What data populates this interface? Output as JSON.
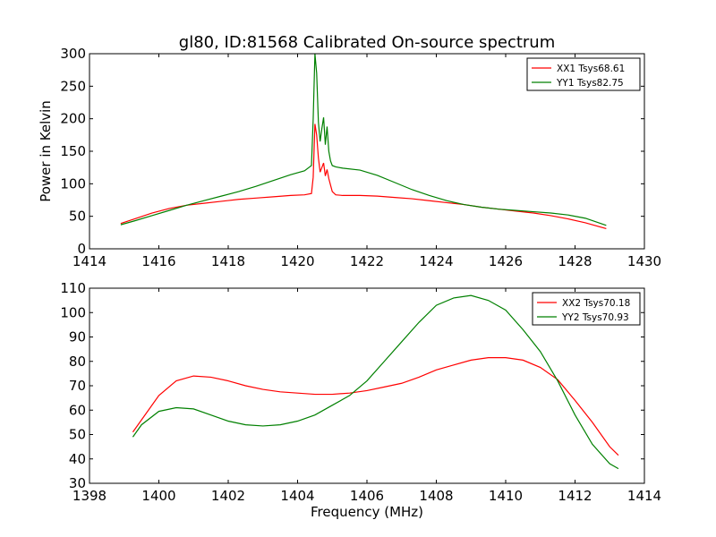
{
  "figure": {
    "title": "gl80, ID:81568 Calibrated On-source spectrum"
  },
  "chart_data": [
    {
      "type": "line",
      "ylabel": "Power in Kelvin",
      "xlabel": "",
      "xlim": [
        1414,
        1430
      ],
      "ylim": [
        0,
        300
      ],
      "xticks": [
        1414,
        1416,
        1418,
        1420,
        1422,
        1424,
        1426,
        1428,
        1430
      ],
      "yticks": [
        0,
        50,
        100,
        150,
        200,
        250,
        300
      ],
      "grid": false,
      "legend": "top-right",
      "series": [
        {
          "name": "XX1 Tsys68.61",
          "color": "#ff0000",
          "x": [
            1414.9,
            1415.3,
            1415.8,
            1416.3,
            1416.8,
            1417.3,
            1417.8,
            1418.3,
            1418.8,
            1419.3,
            1419.8,
            1420.2,
            1420.4,
            1420.45,
            1420.5,
            1420.55,
            1420.6,
            1420.65,
            1420.7,
            1420.75,
            1420.8,
            1420.85,
            1420.9,
            1420.95,
            1421.0,
            1421.1,
            1421.3,
            1421.8,
            1422.3,
            1422.8,
            1423.3,
            1423.8,
            1424.3,
            1424.8,
            1425.3,
            1425.8,
            1426.3,
            1426.8,
            1427.3,
            1427.8,
            1428.3,
            1428.9
          ],
          "y": [
            39,
            46,
            55,
            62,
            67,
            70,
            73,
            76,
            78,
            80,
            82,
            83,
            85,
            110,
            192,
            175,
            140,
            118,
            125,
            132,
            112,
            122,
            108,
            98,
            88,
            83,
            82,
            82,
            81,
            79,
            77,
            74,
            71,
            68,
            64,
            61,
            58,
            55,
            51,
            46,
            40,
            31
          ]
        },
        {
          "name": "YY1 Tsys82.75",
          "color": "#008000",
          "x": [
            1414.9,
            1415.3,
            1415.8,
            1416.3,
            1416.8,
            1417.3,
            1417.8,
            1418.3,
            1418.8,
            1419.3,
            1419.8,
            1420.2,
            1420.4,
            1420.45,
            1420.5,
            1420.55,
            1420.6,
            1420.65,
            1420.7,
            1420.75,
            1420.8,
            1420.85,
            1420.9,
            1420.95,
            1421.0,
            1421.1,
            1421.3,
            1421.8,
            1422.3,
            1422.8,
            1423.3,
            1423.8,
            1424.3,
            1424.8,
            1425.3,
            1425.8,
            1426.3,
            1426.8,
            1427.3,
            1427.8,
            1428.3,
            1428.9
          ],
          "y": [
            37,
            43,
            51,
            59,
            67,
            74,
            81,
            88,
            96,
            105,
            114,
            120,
            128,
            200,
            300,
            270,
            195,
            165,
            185,
            202,
            160,
            188,
            150,
            135,
            128,
            126,
            124,
            121,
            113,
            102,
            91,
            82,
            74,
            68,
            64,
            61,
            59,
            57,
            55,
            52,
            47,
            36
          ]
        }
      ]
    },
    {
      "type": "line",
      "ylabel": "",
      "xlabel": "Frequency (MHz)",
      "xlim": [
        1398,
        1414
      ],
      "ylim": [
        30,
        110
      ],
      "xticks": [
        1398,
        1400,
        1402,
        1404,
        1406,
        1408,
        1410,
        1412,
        1414
      ],
      "yticks": [
        30,
        40,
        50,
        60,
        70,
        80,
        90,
        100,
        110
      ],
      "grid": false,
      "legend": "top-right",
      "series": [
        {
          "name": "XX2 Tsys70.18",
          "color": "#ff0000",
          "x": [
            1399.25,
            1399.5,
            1400.0,
            1400.5,
            1401.0,
            1401.5,
            1402.0,
            1402.5,
            1403.0,
            1403.5,
            1404.0,
            1404.5,
            1405.0,
            1405.5,
            1406.0,
            1406.5,
            1407.0,
            1407.5,
            1408.0,
            1408.5,
            1409.0,
            1409.5,
            1410.0,
            1410.5,
            1411.0,
            1411.5,
            1412.0,
            1412.5,
            1413.0,
            1413.25
          ],
          "y": [
            51,
            56,
            66,
            72,
            74,
            73.5,
            72,
            70,
            68.5,
            67.5,
            67,
            66.5,
            66.5,
            67,
            68,
            69.5,
            71,
            73.5,
            76.5,
            78.5,
            80.5,
            81.5,
            81.5,
            80.5,
            77.5,
            72.5,
            64,
            55,
            45,
            41.5
          ]
        },
        {
          "name": "YY2 Tsys70.93",
          "color": "#008000",
          "x": [
            1399.25,
            1399.5,
            1400.0,
            1400.5,
            1401.0,
            1401.5,
            1402.0,
            1402.5,
            1403.0,
            1403.5,
            1404.0,
            1404.5,
            1405.0,
            1405.5,
            1406.0,
            1406.5,
            1407.0,
            1407.5,
            1408.0,
            1408.5,
            1409.0,
            1409.5,
            1410.0,
            1410.5,
            1411.0,
            1411.5,
            1412.0,
            1412.5,
            1413.0,
            1413.25
          ],
          "y": [
            49,
            54,
            59.5,
            61,
            60.5,
            58,
            55.5,
            54,
            53.5,
            54,
            55.5,
            58,
            62,
            66,
            72,
            80,
            88,
            96,
            103,
            106,
            107,
            105,
            101,
            93,
            84,
            72,
            58,
            46,
            38,
            36
          ]
        }
      ]
    }
  ]
}
